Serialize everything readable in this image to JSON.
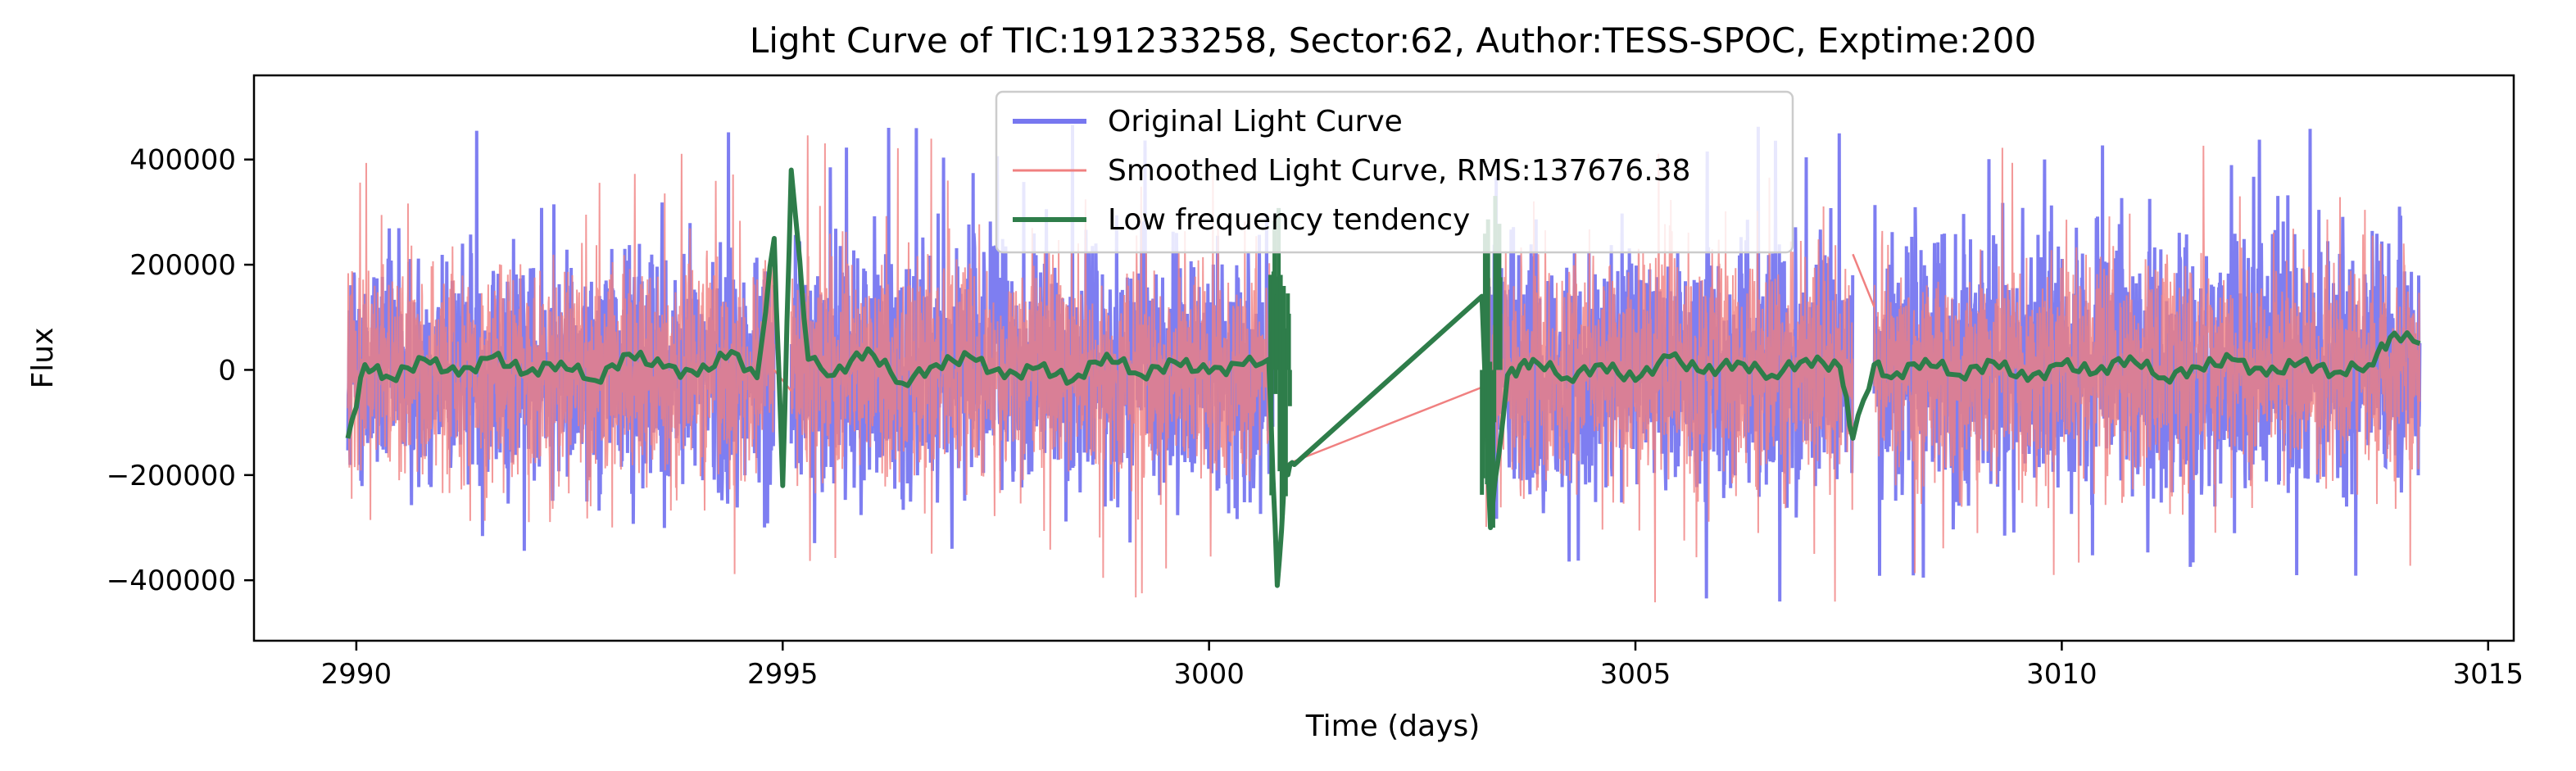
{
  "chart_data": {
    "type": "line",
    "title": "Light Curve of TIC:191233258, Sector:62, Author:TESS-SPOC, Exptime:200",
    "xlabel": "Time (days)",
    "ylabel": "Flux",
    "xlim": [
      2988.8,
      3015.3
    ],
    "ylim": [
      -515000,
      560000
    ],
    "xticks": [
      2990,
      2995,
      3000,
      3005,
      3010,
      3015
    ],
    "yticks": [
      -400000,
      -200000,
      0,
      200000,
      400000
    ],
    "ytick_labels": [
      "−400000",
      "−200000",
      "0",
      "200000",
      "400000"
    ],
    "grid": false,
    "legend_position": "top-center",
    "segments": [
      [
        2989.9,
        2994.9
      ],
      [
        2995.1,
        3000.75
      ],
      [
        3003.25,
        3007.55
      ],
      [
        3007.8,
        3014.2
      ]
    ],
    "series": [
      {
        "name": "Original Light Curve",
        "color": "#7777f0",
        "style": "noise",
        "noise_amplitude": 150000,
        "spike_max": 470000
      },
      {
        "name": "Smoothed Light Curve, RMS:137676.38",
        "color": "#f08080",
        "style": "noise",
        "noise_amplitude": 137676.38,
        "spike_max": 450000
      },
      {
        "name": "Low frequency tendency",
        "color": "#2e7d4a",
        "style": "trend",
        "x": [
          2989.9,
          2990.1,
          2990.4,
          2990.8,
          2991.2,
          2991.6,
          2992.0,
          2992.4,
          2992.8,
          2993.2,
          2993.6,
          2994.0,
          2994.4,
          2994.7,
          2994.9,
          2995.0,
          2995.1,
          2995.3,
          2995.6,
          2996.0,
          2996.4,
          2996.8,
          2997.2,
          2997.6,
          2998.0,
          2998.4,
          2998.8,
          2999.2,
          2999.6,
          3000.0,
          3000.4,
          3000.7,
          3000.8,
          3000.9,
          3001.0,
          3003.2,
          3003.3,
          3003.5,
          3003.8,
          3004.2,
          3004.6,
          3005.0,
          3005.4,
          3005.8,
          3006.2,
          3006.6,
          3007.0,
          3007.4,
          3007.55,
          3007.8,
          3008.0,
          3008.4,
          3008.8,
          3009.2,
          3009.6,
          3010.0,
          3010.4,
          3010.8,
          3011.2,
          3011.6,
          3012.0,
          3012.4,
          3012.8,
          3013.2,
          3013.6,
          3013.9,
          3014.2
        ],
        "y": [
          -130000,
          10000,
          -15000,
          20000,
          -10000,
          25000,
          -5000,
          15000,
          -20000,
          30000,
          5000,
          -10000,
          35000,
          -15000,
          250000,
          -220000,
          380000,
          20000,
          -10000,
          40000,
          -25000,
          10000,
          25000,
          -15000,
          5000,
          -20000,
          30000,
          -10000,
          15000,
          -5000,
          10000,
          20000,
          -410000,
          -190000,
          -180000,
          140000,
          -300000,
          -10000,
          20000,
          -15000,
          10000,
          -20000,
          25000,
          -5000,
          15000,
          -10000,
          20000,
          5000,
          -130000,
          10000,
          -15000,
          20000,
          -10000,
          15000,
          -20000,
          10000,
          -5000,
          25000,
          -15000,
          5000,
          20000,
          -10000,
          15000,
          -5000,
          10000,
          70000,
          50000
        ]
      }
    ]
  }
}
